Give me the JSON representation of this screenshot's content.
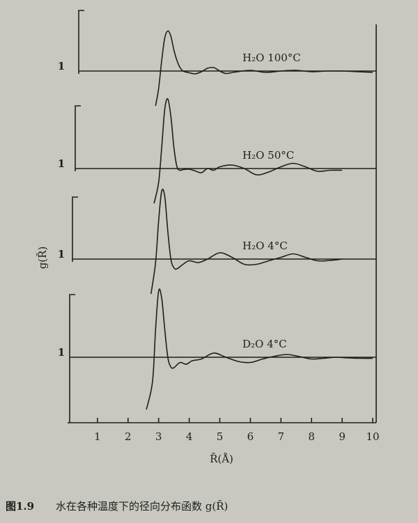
{
  "chart_data": [
    {
      "type": "line",
      "annotation": "H₂O   100°C",
      "ylim": [
        0,
        3
      ],
      "yticks": [
        1
      ],
      "x": [
        2.9,
        3.0,
        3.1,
        3.2,
        3.3,
        3.4,
        3.5,
        3.6,
        3.7,
        3.8,
        4.0,
        4.2,
        4.4,
        4.6,
        4.8,
        5.0,
        5.2,
        5.5,
        6.0,
        6.5,
        7.0,
        7.5,
        8.0,
        8.5,
        9.0,
        9.5,
        10.0
      ],
      "values": [
        0.0,
        0.5,
        1.3,
        1.95,
        2.15,
        2.0,
        1.6,
        1.3,
        1.1,
        1.0,
        0.95,
        0.92,
        0.98,
        1.08,
        1.1,
        1.0,
        0.93,
        0.97,
        1.02,
        0.96,
        1.0,
        1.02,
        0.98,
        1.0,
        1.0,
        0.98,
        0.96
      ]
    },
    {
      "type": "line",
      "annotation": "H₂O   50°C",
      "ylim": [
        0,
        3
      ],
      "yticks": [
        1
      ],
      "x": [
        2.85,
        3.0,
        3.1,
        3.2,
        3.3,
        3.4,
        3.5,
        3.6,
        3.7,
        3.8,
        4.0,
        4.2,
        4.4,
        4.6,
        4.8,
        5.0,
        5.4,
        5.8,
        6.2,
        6.6,
        7.0,
        7.4,
        7.8,
        8.2,
        8.6,
        9.0
      ],
      "values": [
        0.0,
        0.6,
        1.6,
        2.7,
        3.0,
        2.5,
        1.6,
        1.05,
        0.95,
        0.97,
        0.98,
        0.93,
        0.88,
        1.0,
        0.95,
        1.05,
        1.1,
        1.0,
        0.82,
        0.9,
        1.05,
        1.15,
        1.05,
        0.92,
        0.95,
        0.95
      ]
    },
    {
      "type": "line",
      "annotation": "H₂O   4°C",
      "ylim": [
        0,
        3
      ],
      "yticks": [
        1
      ],
      "x": [
        2.75,
        2.9,
        3.0,
        3.1,
        3.2,
        3.3,
        3.4,
        3.5,
        3.6,
        3.8,
        4.0,
        4.3,
        4.6,
        5.0,
        5.4,
        5.8,
        6.2,
        6.6,
        7.0,
        7.4,
        7.8,
        8.2,
        8.6,
        9.0
      ],
      "values": [
        0.0,
        0.9,
        2.1,
        2.95,
        2.8,
        1.8,
        1.0,
        0.75,
        0.72,
        0.85,
        0.95,
        0.9,
        1.0,
        1.18,
        1.05,
        0.85,
        0.85,
        0.95,
        1.05,
        1.15,
        1.05,
        0.95,
        0.96,
        1.0
      ]
    },
    {
      "type": "line",
      "annotation": "D₂O   4°C",
      "ylim": [
        0,
        3
      ],
      "yticks": [
        1
      ],
      "ylabel": "g(R̄)",
      "xlabel": "R̄(Å)",
      "xlim": [
        0,
        10
      ],
      "xticks": [
        1,
        2,
        3,
        4,
        5,
        6,
        7,
        8,
        9,
        10
      ],
      "x": [
        2.6,
        2.8,
        2.9,
        3.0,
        3.1,
        3.2,
        3.3,
        3.4,
        3.5,
        3.7,
        3.9,
        4.1,
        4.4,
        4.8,
        5.2,
        5.6,
        6.0,
        6.4,
        6.8,
        7.2,
        7.6,
        8.0,
        8.4,
        8.8,
        9.2,
        9.6,
        10.0
      ],
      "values": [
        -0.5,
        0.3,
        1.8,
        2.9,
        2.7,
        1.8,
        1.0,
        0.72,
        0.7,
        0.85,
        0.8,
        0.9,
        0.95,
        1.12,
        1.0,
        0.88,
        0.85,
        0.95,
        1.03,
        1.08,
        1.02,
        0.95,
        0.97,
        1.0,
        0.98,
        0.97,
        0.97
      ]
    }
  ],
  "caption": {
    "label": "图1.9",
    "text": "水在各种温度下的径向分布函数 g(R̄)"
  }
}
